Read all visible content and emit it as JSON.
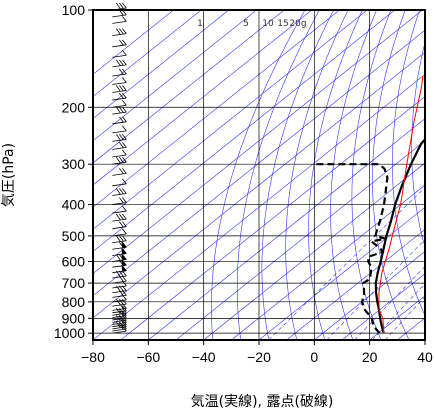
{
  "chart_data": {
    "type": "line",
    "title": "",
    "xlabel": "気温(実線), 露点(破線)",
    "ylabel": "気圧(hPa)",
    "xlim": [
      -80,
      40
    ],
    "ylim": [
      1050,
      100
    ],
    "y_scale": "log",
    "x_ticks": [
      "−80",
      "−60",
      "−40",
      "−20",
      "0",
      "20",
      "40"
    ],
    "x_tick_values": [
      -80,
      -60,
      -40,
      -20,
      0,
      20,
      40
    ],
    "y_ticks": [
      "100",
      "200",
      "300",
      "400",
      "500",
      "600",
      "700",
      "800",
      "900",
      "1000"
    ],
    "y_tick_values": [
      100,
      200,
      300,
      400,
      500,
      600,
      700,
      800,
      900,
      1000
    ],
    "mixing_ratio_labels": [
      "1",
      "5",
      "10",
      "15",
      "20g"
    ],
    "mixing_ratio_values": [
      1,
      5,
      10,
      15,
      20
    ],
    "grid": true,
    "colors": {
      "temperature": "#000000",
      "dewpoint": "#000000",
      "parcel": "#ff0000",
      "background_lines": "#3333ff",
      "grid": "#000000"
    },
    "series": [
      {
        "name": "気温",
        "style": "solid",
        "points": [
          [
            22.0,
            1000
          ],
          [
            18.0,
            950
          ],
          [
            14.0,
            900
          ],
          [
            10.0,
            850
          ],
          [
            5.5,
            800
          ],
          [
            1.0,
            750
          ],
          [
            -3.5,
            700
          ],
          [
            -7.5,
            650
          ],
          [
            -11.5,
            600
          ],
          [
            -16.0,
            550
          ],
          [
            -21.0,
            500
          ],
          [
            -26.0,
            450
          ],
          [
            -32.0,
            400
          ],
          [
            -38.0,
            350
          ],
          [
            -44.5,
            300
          ],
          [
            -50.0,
            260
          ],
          [
            -51.5,
            240
          ],
          [
            -51.0,
            230
          ],
          [
            -52.0,
            220
          ],
          [
            -55.0,
            200
          ],
          [
            -57.0,
            185
          ],
          [
            -58.0,
            170
          ],
          [
            -59.5,
            160
          ],
          [
            -58.0,
            150
          ],
          [
            -59.0,
            140
          ],
          [
            -61.0,
            130
          ],
          [
            -63.0,
            125
          ],
          [
            -65.0,
            120
          ],
          [
            -66.0,
            115
          ],
          [
            -68.5,
            110
          ],
          [
            -69.5,
            105
          ],
          [
            -69.5,
            100
          ]
        ]
      },
      {
        "name": "露点",
        "style": "dashed",
        "points": [
          [
            20.5,
            1000
          ],
          [
            15.0,
            950
          ],
          [
            11.0,
            900
          ],
          [
            5.0,
            850
          ],
          [
            0.0,
            800
          ],
          [
            -2.5,
            760
          ],
          [
            -6.0,
            720
          ],
          [
            -8.0,
            700
          ],
          [
            -7.5,
            680
          ],
          [
            -10.0,
            650
          ],
          [
            -13.0,
            620
          ],
          [
            -16.0,
            600
          ],
          [
            -18.0,
            580
          ],
          [
            -15.0,
            560
          ],
          [
            -19.0,
            540
          ],
          [
            -24.0,
            520
          ],
          [
            -20.0,
            510
          ],
          [
            -25.0,
            500
          ],
          [
            -27.0,
            480
          ],
          [
            -30.0,
            450
          ],
          [
            -36.0,
            400
          ],
          [
            -42.0,
            360
          ],
          [
            -47.0,
            330
          ],
          [
            -52.0,
            310
          ],
          [
            -56.0,
            300
          ],
          [
            -68.0,
            300
          ],
          [
            -79.0,
            300
          ]
        ]
      },
      {
        "name": "",
        "style": "parcel",
        "points": [
          [
            22.0,
            1000
          ],
          [
            15.0,
            900
          ],
          [
            10.0,
            850
          ],
          [
            2.0,
            750
          ],
          [
            -6.0,
            650
          ],
          [
            -14.0,
            550
          ],
          [
            -22.0,
            470
          ],
          [
            -30.0,
            400
          ],
          [
            -46.0,
            300
          ],
          [
            -63.0,
            220
          ],
          [
            -75.0,
            175
          ],
          [
            -80.0,
            160
          ]
        ]
      }
    ],
    "wind_barbs": {
      "x": -73,
      "pressures": [
        1000,
        985,
        970,
        955,
        940,
        925,
        910,
        895,
        880,
        865,
        850,
        825,
        800,
        775,
        750,
        725,
        700,
        675,
        650,
        625,
        600,
        575,
        550,
        525,
        500,
        475,
        450,
        425,
        400,
        375,
        350,
        325,
        300,
        285,
        270,
        255,
        240,
        225,
        210,
        200,
        190,
        180,
        170,
        160,
        150,
        140,
        130,
        120,
        110,
        105,
        100
      ]
    }
  }
}
